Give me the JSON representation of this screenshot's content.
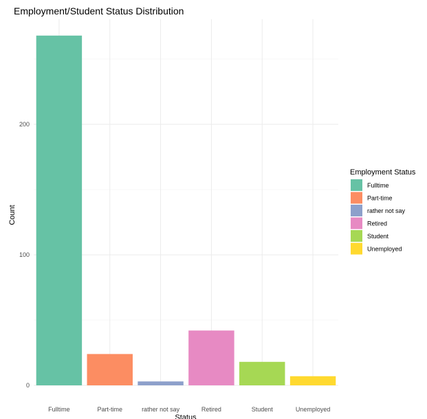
{
  "chart_data": {
    "type": "bar",
    "title": "Employment/Student Status Distribution",
    "xlabel": "Status",
    "ylabel": "Count",
    "categories": [
      "Fulltime",
      "Part-time",
      "rather not say",
      "Retired",
      "Student",
      "Unemployed"
    ],
    "values": [
      268,
      24,
      3,
      42,
      18,
      7
    ],
    "colors": [
      "#66c2a5",
      "#fc8d62",
      "#8da0cb",
      "#e78ac3",
      "#a6d854",
      "#ffd92f"
    ],
    "ylim": [
      0,
      280
    ],
    "yticks": [
      0,
      100,
      200
    ],
    "grid": true,
    "legend": {
      "title": "Employment Status",
      "placement": "right",
      "entries": [
        "Fulltime",
        "Part-time",
        "rather not say",
        "Retired",
        "Student",
        "Unemployed"
      ]
    }
  }
}
